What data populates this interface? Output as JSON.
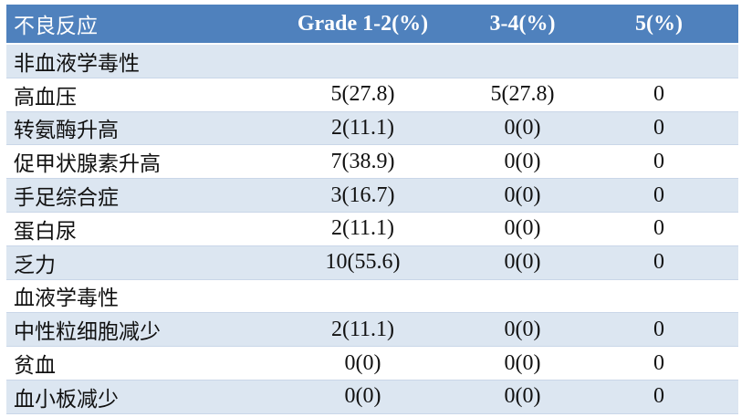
{
  "header": [
    "不良反应",
    "Grade 1-2(%)",
    "3-4(%)",
    "5(%)"
  ],
  "rows": [
    {
      "label": "非血液学毒性",
      "g12": "",
      "g34": "",
      "g5": ""
    },
    {
      "label": "高血压",
      "g12": "5(27.8)",
      "g34": "5(27.8)",
      "g5": "0"
    },
    {
      "label": "转氨酶升高",
      "g12": "2(11.1)",
      "g34": "0(0)",
      "g5": "0"
    },
    {
      "label": "促甲状腺素升高",
      "g12": "7(38.9)",
      "g34": "0(0)",
      "g5": "0"
    },
    {
      "label": "手足综合症",
      "g12": "3(16.7)",
      "g34": "0(0)",
      "g5": "0"
    },
    {
      "label": "蛋白尿",
      "g12": "2(11.1)",
      "g34": "0(0)",
      "g5": "0"
    },
    {
      "label": "乏力",
      "g12": "10(55.6)",
      "g34": "0(0)",
      "g5": "0"
    },
    {
      "label": "血液学毒性",
      "g12": "",
      "g34": "",
      "g5": ""
    },
    {
      "label": "中性粒细胞减少",
      "g12": "2(11.1)",
      "g34": "0(0)",
      "g5": "0"
    },
    {
      "label": "贫血",
      "g12": "0(0)",
      "g34": "0(0)",
      "g5": "0"
    },
    {
      "label": "血小板减少",
      "g12": "0(0)",
      "g34": "0(0)",
      "g5": "0"
    }
  ],
  "colors": {
    "header_bg": "#4f81bd",
    "band": "#dce6f1"
  }
}
